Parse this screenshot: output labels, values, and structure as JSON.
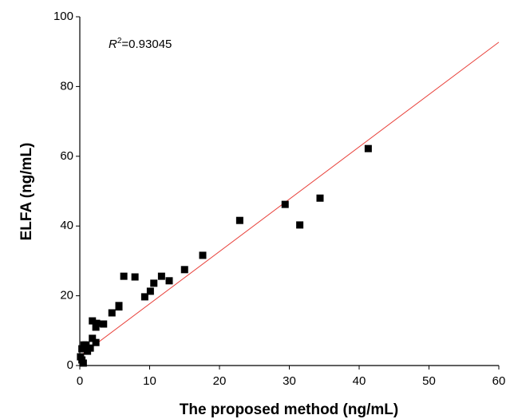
{
  "chart_data": {
    "type": "scatter",
    "annotation": {
      "symbol": "R",
      "superscript": "2",
      "text": "=0.93045"
    },
    "x_label": "The proposed method (ng/mL)",
    "y_label": "ELFA (ng/mL)",
    "xlim": [
      0,
      60
    ],
    "ylim": [
      0,
      100
    ],
    "xticks": [
      0,
      10,
      20,
      30,
      40,
      50,
      60
    ],
    "yticks": [
      0,
      20,
      40,
      60,
      80,
      100
    ],
    "color": "#000000",
    "x": [
      41.3,
      34.4,
      31.5,
      29.4,
      22.9,
      17.6,
      15.0,
      12.8,
      11.7,
      10.6,
      10.1,
      9.3,
      7.9,
      6.3,
      5.6,
      5.6,
      4.6,
      3.4,
      2.4,
      2.3,
      1.8,
      2.3,
      1.8,
      1.5,
      1.1,
      0.6,
      0.3,
      0.3,
      0.5,
      0.1,
      0.9
    ],
    "values": [
      62.2,
      48.0,
      40.3,
      46.2,
      41.6,
      31.6,
      27.5,
      24.3,
      25.6,
      23.6,
      21.3,
      19.7,
      25.4,
      25.6,
      17.2,
      16.8,
      15.1,
      11.9,
      12.1,
      11.0,
      12.8,
      6.6,
      7.8,
      5.0,
      4.1,
      5.9,
      4.8,
      1.6,
      0.7,
      2.5,
      5.9
    ],
    "fit_line": {
      "color": "#e8403a",
      "x": [
        0,
        60
      ],
      "y": [
        2.7,
        92.7
      ]
    }
  }
}
